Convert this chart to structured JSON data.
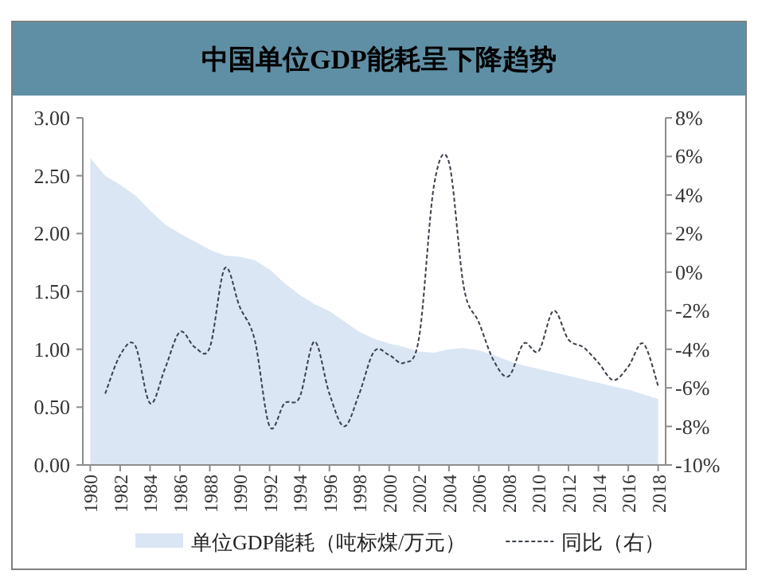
{
  "chart_data": {
    "type": "area",
    "title": "中国单位GDP能耗呈下降趋势",
    "x": [
      1980,
      1981,
      1982,
      1983,
      1984,
      1985,
      1986,
      1987,
      1988,
      1989,
      1990,
      1991,
      1992,
      1993,
      1994,
      1995,
      1996,
      1997,
      1998,
      1999,
      2000,
      2001,
      2002,
      2003,
      2004,
      2005,
      2006,
      2007,
      2008,
      2009,
      2010,
      2011,
      2012,
      2013,
      2014,
      2015,
      2016,
      2017,
      2018
    ],
    "xlim": [
      1979.5,
      2018.5
    ],
    "xticks": [
      1980,
      1982,
      1984,
      1986,
      1988,
      1990,
      1992,
      1994,
      1996,
      1998,
      2000,
      2002,
      2004,
      2006,
      2008,
      2010,
      2012,
      2014,
      2016,
      2018
    ],
    "ylim": [
      0,
      3
    ],
    "yticks": [
      {
        "value": 0,
        "label": "0.00"
      },
      {
        "value": 0.5,
        "label": "0.50"
      },
      {
        "value": 1,
        "label": "1.00"
      },
      {
        "value": 1.5,
        "label": "1.50"
      },
      {
        "value": 2,
        "label": "2.00"
      },
      {
        "value": 2.5,
        "label": "2.50"
      },
      {
        "value": 3,
        "label": "3.00"
      }
    ],
    "y2lim": [
      -10,
      8
    ],
    "y2ticks": [
      {
        "value": -10,
        "label": "-10%"
      },
      {
        "value": -8,
        "label": "-8%"
      },
      {
        "value": -6,
        "label": "-6%"
      },
      {
        "value": -4,
        "label": "-4%"
      },
      {
        "value": -2,
        "label": "-2%"
      },
      {
        "value": 0,
        "label": "0%"
      },
      {
        "value": 2,
        "label": "2%"
      },
      {
        "value": 4,
        "label": "4%"
      },
      {
        "value": 6,
        "label": "6%"
      },
      {
        "value": 8,
        "label": "8%"
      }
    ],
    "series": [
      {
        "type": "area",
        "name": "单位GDP能耗（吨标煤/万元）",
        "color": "#dae6f3",
        "values": [
          2.65,
          2.5,
          2.42,
          2.33,
          2.2,
          2.08,
          2.0,
          1.93,
          1.86,
          1.81,
          1.8,
          1.77,
          1.69,
          1.57,
          1.47,
          1.39,
          1.33,
          1.24,
          1.15,
          1.09,
          1.05,
          1.02,
          0.98,
          0.97,
          1.0,
          1.01,
          0.99,
          0.95,
          0.9,
          0.86,
          0.83,
          0.8,
          0.77,
          0.74,
          0.71,
          0.68,
          0.65,
          0.61,
          0.57
        ]
      },
      {
        "type": "line",
        "name": "同比（右）",
        "color": "#3a3f4a",
        "axis": "y2",
        "line_style": "dashed",
        "values": [
          null,
          -6.3,
          -4.3,
          -3.8,
          -6.8,
          -5.0,
          -3.1,
          -3.9,
          -3.9,
          0.2,
          -1.8,
          -3.5,
          -8.0,
          -6.8,
          -6.5,
          -3.6,
          -6.3,
          -8.0,
          -6.3,
          -4.1,
          -4.3,
          -4.7,
          -3.4,
          4.5,
          5.7,
          -0.8,
          -2.6,
          -4.6,
          -5.4,
          -3.7,
          -4.1,
          -2.0,
          -3.5,
          -3.9,
          -4.7,
          -5.6,
          -4.9,
          -3.7,
          -5.9
        ]
      }
    ],
    "legend": "bottom"
  }
}
